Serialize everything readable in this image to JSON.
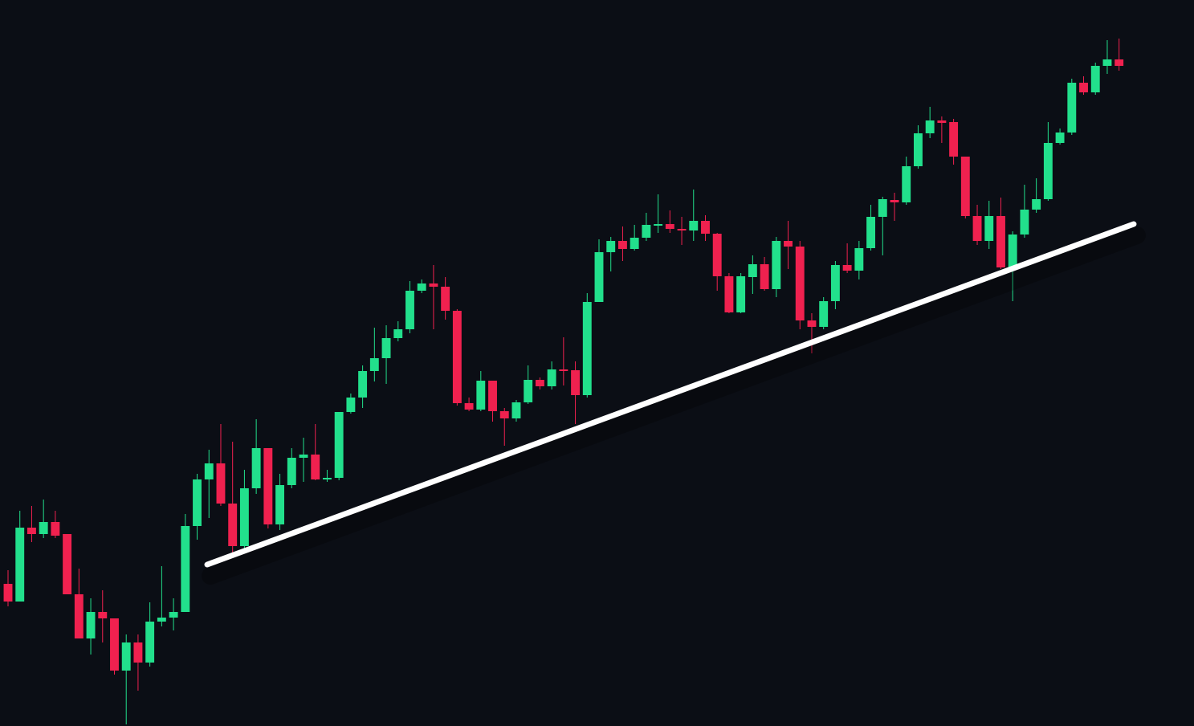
{
  "chart_data": {
    "type": "candlestick",
    "up_color": "#22e08c",
    "down_color": "#f0214f",
    "ylim": [
      0,
      904
    ],
    "xlim": [
      -0.68,
      100.34
    ],
    "open": [
      177,
      155,
      247,
      239,
      254,
      239,
      164,
      109,
      142,
      134,
      69,
      104,
      79,
      130,
      135,
      142,
      249,
      307,
      327,
      277,
      224,
      296,
      346,
      251,
      300,
      334,
      338,
      307,
      309,
      391,
      409,
      442,
      458,
      483,
      494,
      542,
      551,
      547,
      517,
      402,
      394,
      430,
      392,
      383,
      403,
      431,
      423,
      444,
      443,
      412,
      528,
      590,
      604,
      594,
      608,
      623,
      625,
      619,
      617,
      629,
      613,
      560,
      515,
      559,
      575,
      544,
      604,
      597,
      505,
      497,
      529,
      574,
      567,
      595,
      634,
      655,
      652,
      697,
      738,
      754,
      752,
      709,
      635,
      604,
      635,
      571,
      612,
      643,
      656,
      726,
      739,
      801,
      789,
      822,
      830
    ],
    "high": [
      194,
      268,
      274,
      282,
      268,
      239,
      196,
      159,
      169,
      134,
      114,
      114,
      154,
      199,
      159,
      264,
      314,
      344,
      376,
      354,
      319,
      382,
      346,
      314,
      346,
      359,
      376,
      319,
      391,
      414,
      449,
      496,
      499,
      504,
      554,
      556,
      574,
      559,
      519,
      409,
      442,
      430,
      396,
      406,
      449,
      434,
      454,
      484,
      454,
      539,
      606,
      609,
      622,
      624,
      639,
      662,
      642,
      634,
      668,
      636,
      614,
      564,
      564,
      586,
      584,
      609,
      629,
      604,
      514,
      534,
      579,
      601,
      604,
      649,
      659,
      664,
      709,
      748,
      771,
      759,
      756,
      709,
      649,
      654,
      658,
      616,
      674,
      682,
      752,
      744,
      806,
      809,
      826,
      854,
      856
    ],
    "low": [
      149,
      155,
      229,
      234,
      234,
      164,
      109,
      89,
      104,
      64,
      2,
      44,
      74,
      124,
      119,
      142,
      232,
      259,
      274,
      214,
      219,
      289,
      246,
      244,
      296,
      304,
      306,
      304,
      306,
      389,
      396,
      429,
      426,
      479,
      489,
      539,
      494,
      506,
      399,
      392,
      392,
      379,
      349,
      379,
      401,
      419,
      419,
      424,
      376,
      409,
      528,
      566,
      579,
      592,
      604,
      614,
      614,
      599,
      604,
      604,
      542,
      514,
      514,
      538,
      542,
      534,
      569,
      494,
      464,
      494,
      519,
      564,
      556,
      592,
      586,
      629,
      649,
      694,
      732,
      726,
      699,
      632,
      599,
      594,
      569,
      529,
      608,
      639,
      654,
      724,
      736,
      786,
      786,
      812,
      816
    ],
    "close": [
      155,
      247,
      239,
      254,
      237,
      164,
      109,
      142,
      134,
      69,
      104,
      79,
      130,
      135,
      142,
      249,
      307,
      327,
      277,
      224,
      296,
      346,
      251,
      300,
      334,
      338,
      307,
      309,
      391,
      409,
      442,
      458,
      483,
      494,
      542,
      551,
      547,
      517,
      402,
      394,
      430,
      392,
      383,
      403,
      431,
      423,
      444,
      442,
      412,
      528,
      590,
      604,
      594,
      608,
      624,
      625,
      619,
      617,
      629,
      613,
      560,
      515,
      560,
      575,
      544,
      604,
      597,
      505,
      497,
      529,
      574,
      567,
      595,
      634,
      656,
      652,
      697,
      738,
      754,
      751,
      709,
      635,
      604,
      635,
      571,
      612,
      643,
      656,
      726,
      739,
      801,
      789,
      822,
      830,
      822
    ],
    "trendline": {
      "color": "#ffffff",
      "x": [
        16.85,
        95.24
      ],
      "y": [
        201,
        625
      ]
    }
  }
}
